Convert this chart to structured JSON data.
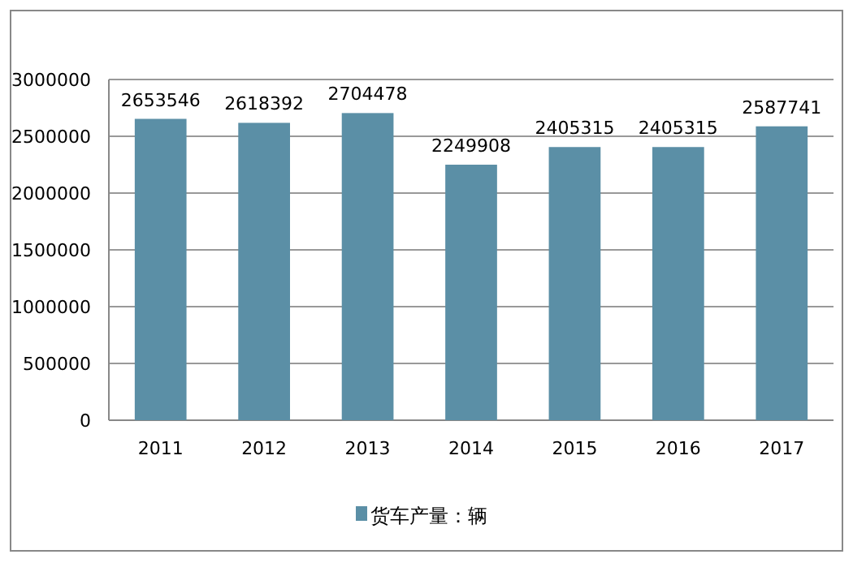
{
  "chart_data": {
    "type": "bar",
    "categories": [
      "2011",
      "2012",
      "2013",
      "2014",
      "2015",
      "2016",
      "2017"
    ],
    "series": [
      {
        "name": "货车产量：辆",
        "color": "#5b8fa6",
        "values": [
          2653546,
          2618392,
          2704478,
          2249908,
          2405315,
          2405315,
          2587741
        ]
      }
    ],
    "ylim": [
      0,
      3000000
    ],
    "yticks": [
      0,
      500000,
      1000000,
      1500000,
      2000000,
      2500000,
      3000000
    ],
    "grid": "y",
    "legend": "bottom",
    "data_labels": true
  }
}
